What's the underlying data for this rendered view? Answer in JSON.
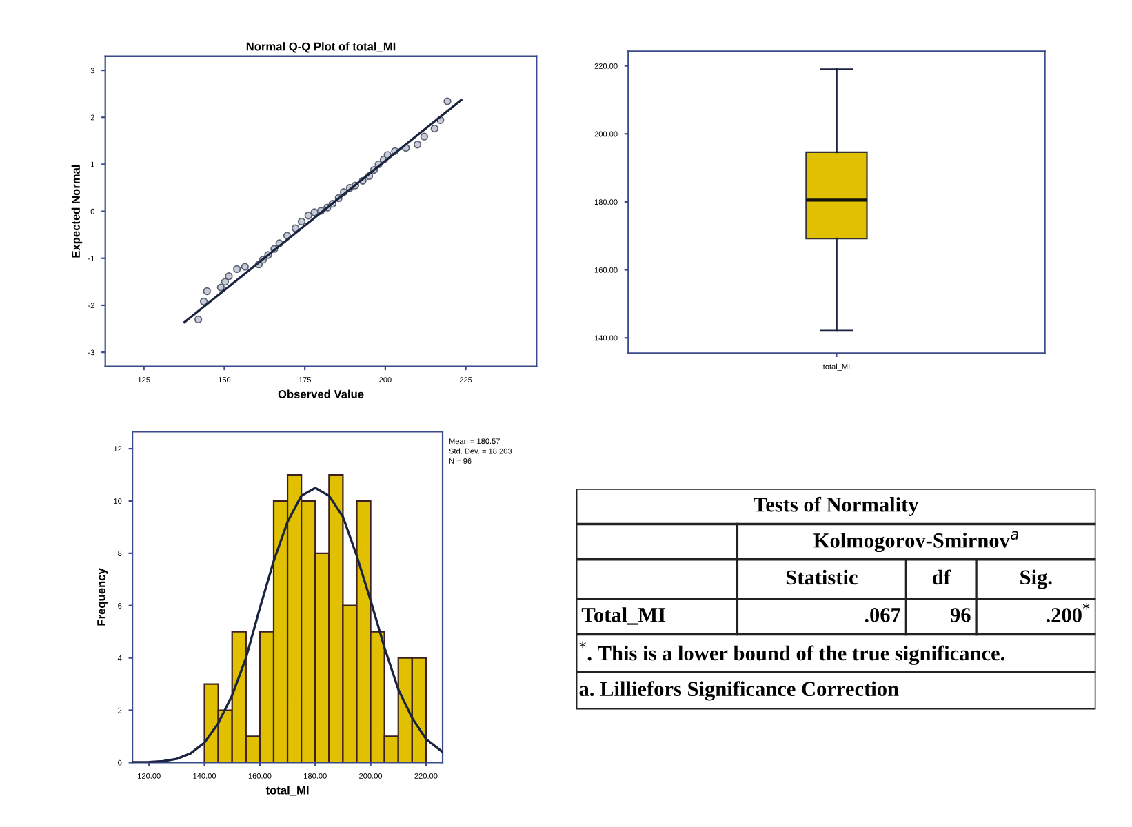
{
  "chart_data": [
    {
      "type": "scatter",
      "title": "Normal Q-Q Plot of total_MI",
      "xlabel": "Observed Value",
      "ylabel": "Expected Normal",
      "xlim": [
        113,
        247
      ],
      "ylim": [
        -3.3,
        3.3
      ],
      "xticks": [
        125,
        150,
        175,
        200,
        225
      ],
      "yticks": [
        -3,
        -2,
        -1,
        0,
        1,
        2,
        3
      ],
      "grid": false,
      "series": [
        {
          "type": "scatter",
          "color": "#5a6070",
          "marker": "circle",
          "x": [
            141.9,
            143.6,
            144.6,
            148.9,
            150.2,
            151.4,
            153.9,
            156.4,
            160.7,
            162.0,
            163.6,
            165.5,
            167.1,
            169.5,
            172.1,
            174.0,
            176.1,
            178.0,
            180.0,
            182.0,
            183.6,
            185.5,
            187.1,
            189.0,
            190.7,
            193.0,
            195.0,
            196.5,
            197.9,
            199.5,
            200.7,
            203.0,
            206.4,
            210.0,
            212.1,
            215.3,
            217.1,
            219.3
          ],
          "values": [
            -2.3,
            -1.92,
            -1.7,
            -1.62,
            -1.5,
            -1.38,
            -1.23,
            -1.18,
            -1.13,
            -1.03,
            -0.93,
            -0.8,
            -0.68,
            -0.52,
            -0.36,
            -0.22,
            -0.09,
            -0.02,
            0.01,
            0.08,
            0.16,
            0.28,
            0.41,
            0.5,
            0.55,
            0.65,
            0.75,
            0.88,
            1.0,
            1.1,
            1.2,
            1.28,
            1.35,
            1.42,
            1.59,
            1.76,
            1.94,
            2.34
          ]
        },
        {
          "type": "line",
          "color": "#1a2340",
          "marker": "none",
          "x": [
            137.6,
            223.6
          ],
          "values": [
            -2.36,
            2.37
          ]
        }
      ]
    },
    {
      "type": "box",
      "categories": [
        "total_MI"
      ],
      "ylim": [
        135.5,
        224.3
      ],
      "yticks": [
        {
          "value": 140,
          "label": "140.00"
        },
        {
          "value": 160,
          "label": "160.00"
        },
        {
          "value": 180,
          "label": "180.00"
        },
        {
          "value": 200,
          "label": "200.00"
        },
        {
          "value": 220,
          "label": "220.00"
        }
      ],
      "grid": false,
      "color": "#e0c000",
      "boxes": [
        {
          "low": 142.1,
          "q1": 169.2,
          "median": 180.5,
          "q3": 194.6,
          "high": 219.0
        }
      ]
    },
    {
      "type": "histogram",
      "xlabel": "total_MI",
      "ylabel": "Frequency",
      "xlim": [
        114,
        226
      ],
      "ylim": [
        0,
        12.65
      ],
      "xticks": [
        {
          "value": 120,
          "label": "120.00"
        },
        {
          "value": 140,
          "label": "140.00"
        },
        {
          "value": 160,
          "label": "160.00"
        },
        {
          "value": 180,
          "label": "180.00"
        },
        {
          "value": 200,
          "label": "200.00"
        },
        {
          "value": 220,
          "label": "220.00"
        }
      ],
      "yticks": [
        0,
        2,
        4,
        6,
        8,
        10,
        12
      ],
      "grid": false,
      "color": "#e0c000",
      "bins": [
        140,
        145,
        150,
        155,
        160,
        165,
        170,
        175,
        180,
        185,
        190,
        195,
        200,
        205,
        210,
        215,
        220
      ],
      "values": [
        3,
        2,
        5,
        1,
        5,
        10,
        11,
        10,
        8,
        11,
        6,
        10,
        5,
        1,
        4,
        4
      ],
      "series": [
        {
          "type": "line",
          "color": "#1a2340",
          "x": [
            114,
            120,
            125,
            130,
            135,
            140,
            145,
            150,
            155,
            160,
            165,
            170,
            175,
            180,
            185,
            190,
            195,
            200,
            205,
            210,
            215,
            220,
            226
          ],
          "values": [
            0.01,
            0.02,
            0.05,
            0.14,
            0.35,
            0.76,
            1.5,
            2.57,
            4.0,
            5.9,
            7.7,
            9.2,
            10.2,
            10.5,
            10.2,
            9.4,
            7.9,
            6.2,
            4.4,
            2.8,
            1.7,
            0.9,
            0.4
          ]
        }
      ],
      "annotations": [
        "Mean = 180.57",
        "Std. Dev. = 18.203",
        "N = 96"
      ]
    },
    {
      "type": "other",
      "title": "Tests of Normality",
      "annotations": [
        "Kolmogorov-Smirnov$^{a}$",
        "Statistic",
        "df",
        "Sig.",
        "Total_MI",
        ".067",
        "96",
        ".200$^{*}$",
        "$^{*}$. This is a lower bound of the true significance.",
        "a. Lilliefors Significance Correction"
      ]
    }
  ]
}
